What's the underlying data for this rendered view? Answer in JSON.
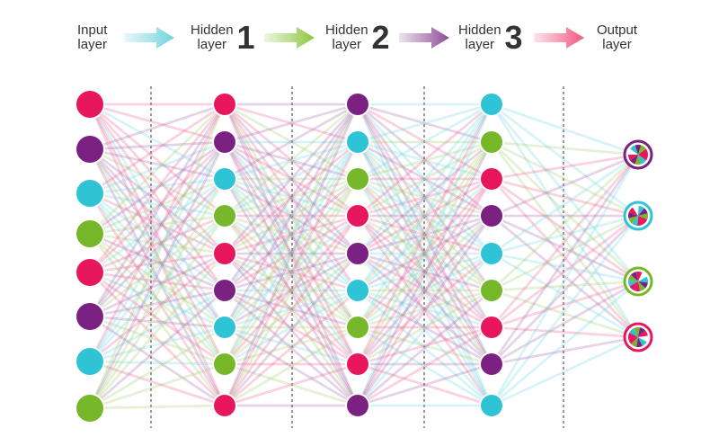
{
  "header": {
    "items": [
      {
        "label": "Input\nlayer",
        "number": ""
      },
      {
        "label": "Hidden\nlayer",
        "number": "1"
      },
      {
        "label": "Hidden\nlayer",
        "number": "2"
      },
      {
        "label": "Hidden\nlayer",
        "number": "3"
      },
      {
        "label": "Output\nlayer",
        "number": ""
      }
    ],
    "arrows": [
      {
        "color": "#6fd3dc",
        "name": "arrow-input-to-hidden1-icon"
      },
      {
        "color": "#8cc63f",
        "name": "arrow-hidden1-to-hidden2-icon"
      },
      {
        "color": "#8e4a96",
        "name": "arrow-hidden2-to-hidden3-icon"
      },
      {
        "color": "#f0567d",
        "name": "arrow-hidden3-to-output-icon"
      }
    ]
  },
  "colors": {
    "pink": "#e8175d",
    "purple": "#7a2182",
    "cyan": "#2ec4d6",
    "green": "#76b82a"
  },
  "network": {
    "layers": [
      {
        "name": "input",
        "nodes": [
          "pink",
          "purple",
          "cyan",
          "green",
          "pink",
          "purple",
          "cyan",
          "green"
        ]
      },
      {
        "name": "hidden1",
        "nodes": [
          "pink",
          "purple",
          "cyan",
          "green",
          "pink",
          "purple",
          "cyan",
          "green",
          "pink"
        ]
      },
      {
        "name": "hidden2",
        "nodes": [
          "purple",
          "cyan",
          "green",
          "pink",
          "purple",
          "cyan",
          "green",
          "pink",
          "purple"
        ]
      },
      {
        "name": "hidden3",
        "nodes": [
          "cyan",
          "green",
          "pink",
          "purple",
          "cyan",
          "green",
          "pink",
          "purple",
          "cyan"
        ]
      },
      {
        "name": "output",
        "nodes": [
          "purple",
          "cyan",
          "green",
          "pink"
        ]
      }
    ]
  }
}
